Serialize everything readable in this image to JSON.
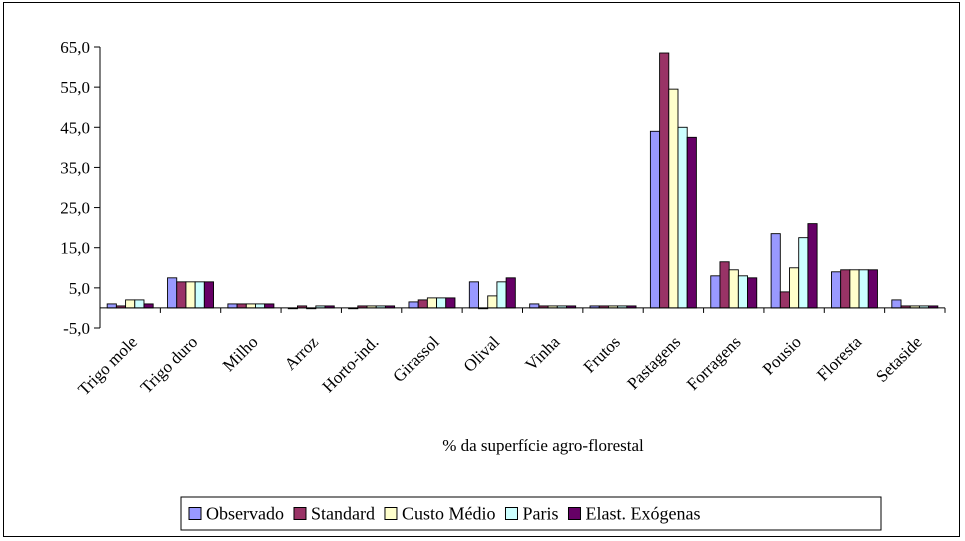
{
  "chart_data": {
    "type": "bar",
    "xlabel": "% da superfície agro-florestal",
    "ylabel": "",
    "ylim": [
      -5,
      65
    ],
    "yticks": [
      -5,
      5,
      15,
      25,
      35,
      45,
      55,
      65
    ],
    "yticklabels": [
      "-5,0",
      "5,0",
      "15,0",
      "25,0",
      "35,0",
      "45,0",
      "55,0",
      "65,0"
    ],
    "grid": "none",
    "legend": "bottom",
    "categories": [
      "Trigo mole",
      "Trigo duro",
      "Milho",
      "Arroz",
      "Horto-ind.",
      "Girassol",
      "Olival",
      "Vinha",
      "Frutos",
      "Pastagens",
      "Forragens",
      "Pousio",
      "Floresta",
      "Setaside"
    ],
    "series": [
      {
        "name": "Observado",
        "color": "#9999FF",
        "values": [
          1.0,
          7.5,
          1.0,
          0.0,
          0.0,
          1.5,
          6.5,
          1.0,
          0.5,
          44.0,
          8.0,
          18.5,
          9.0,
          2.0
        ]
      },
      {
        "name": "Standard",
        "color": "#993366",
        "values": [
          0.5,
          6.5,
          1.0,
          0.5,
          0.5,
          2.0,
          0.0,
          0.5,
          0.5,
          63.5,
          11.5,
          4.0,
          9.5,
          0.5
        ]
      },
      {
        "name": "Custo Médio",
        "color": "#FFFFCC",
        "values": [
          2.0,
          6.5,
          1.0,
          0.0,
          0.5,
          2.5,
          3.0,
          0.5,
          0.5,
          54.5,
          9.5,
          10.0,
          9.5,
          0.5
        ]
      },
      {
        "name": "Paris",
        "color": "#CCFFFF",
        "values": [
          2.0,
          6.5,
          1.0,
          0.5,
          0.5,
          2.5,
          6.5,
          0.5,
          0.5,
          45.0,
          8.0,
          17.5,
          9.5,
          0.5
        ]
      },
      {
        "name": "Elast. Exógenas",
        "color": "#660066",
        "values": [
          1.0,
          6.5,
          1.0,
          0.5,
          0.5,
          2.5,
          7.5,
          0.5,
          0.5,
          42.5,
          7.5,
          21.0,
          9.5,
          0.5
        ]
      }
    ]
  }
}
